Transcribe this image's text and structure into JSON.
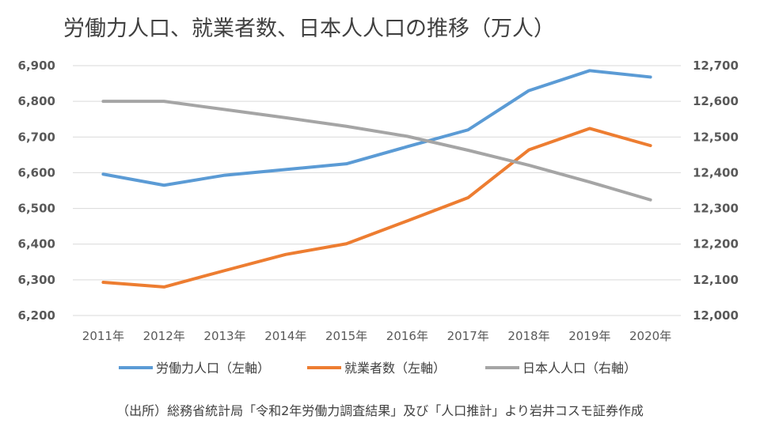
{
  "chart_data": {
    "type": "line",
    "title": "労働力人口、就業者数、日本人人口の推移（万人）",
    "source": "（出所）総務省統計局「令和2年労働力調査結果」及び「人口推計」より岩井コスモ証券作成",
    "categories": [
      "2011年",
      "2012年",
      "2013年",
      "2014年",
      "2015年",
      "2016年",
      "2017年",
      "2018年",
      "2019年",
      "2020年"
    ],
    "left_axis": {
      "min": 6200,
      "max": 6900,
      "step": 100,
      "ticks": [
        "6,200",
        "6,300",
        "6,400",
        "6,500",
        "6,600",
        "6,700",
        "6,800",
        "6,900"
      ]
    },
    "right_axis": {
      "min": 12000,
      "max": 12700,
      "step": 100,
      "ticks": [
        "12,000",
        "12,100",
        "12,200",
        "12,300",
        "12,400",
        "12,500",
        "12,600",
        "12,700"
      ]
    },
    "grid": true,
    "legend_position": "bottom",
    "series": [
      {
        "name": "労働力人口（左軸）",
        "axis": "left",
        "color": "#5B9BD5",
        "values": [
          6596,
          6565,
          6593,
          6609,
          6625,
          6673,
          6720,
          6830,
          6886,
          6868
        ]
      },
      {
        "name": "就業者数（左軸）",
        "axis": "left",
        "color": "#ED7D31",
        "values": [
          6293,
          6280,
          6326,
          6371,
          6401,
          6465,
          6530,
          6664,
          6724,
          6676
        ]
      },
      {
        "name": "日本人人口（右軸）",
        "axis": "right",
        "color": "#A5A5A5",
        "values": [
          12600,
          12600,
          12577,
          12554,
          12530,
          12502,
          12463,
          12421,
          12374,
          12324
        ]
      }
    ]
  }
}
